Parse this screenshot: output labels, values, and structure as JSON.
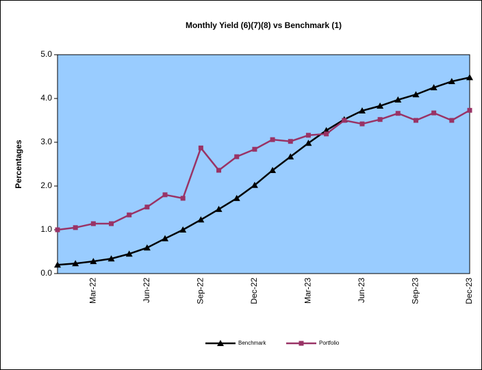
{
  "chart_data": {
    "type": "line",
    "title": "Monthly Yield (6)(7)(8) vs Benchmark (1)",
    "y_label": "Percentages",
    "categories": [
      null,
      null,
      "Mar-22",
      null,
      null,
      "Jun-22",
      null,
      null,
      "Sep-22",
      null,
      null,
      "Dec-22",
      null,
      null,
      "Mar-23",
      null,
      null,
      "Jun-23",
      null,
      null,
      "Sep-23",
      null,
      null,
      "Dec-23"
    ],
    "series": [
      {
        "name": "Benchmark",
        "color": "#000000",
        "marker": "triangle",
        "values": [
          0.2,
          0.23,
          0.28,
          0.34,
          0.45,
          0.59,
          0.8,
          1.0,
          1.23,
          1.47,
          1.72,
          2.02,
          2.36,
          2.67,
          2.98,
          3.27,
          3.52,
          3.72,
          3.83,
          3.97,
          4.09,
          4.25,
          4.39,
          4.48
        ]
      },
      {
        "name": "Portfolio",
        "color": "#993366",
        "marker": "square",
        "values": [
          1.0,
          1.05,
          1.14,
          1.14,
          1.34,
          1.52,
          1.8,
          1.72,
          2.87,
          2.36,
          2.67,
          2.84,
          3.06,
          3.02,
          3.16,
          3.19,
          3.5,
          3.42,
          3.52,
          3.66,
          3.5,
          3.67,
          3.5,
          3.73
        ]
      }
    ],
    "ylim": [
      0,
      5
    ],
    "yticks": [
      {
        "value": 0,
        "label": "0.0"
      },
      {
        "value": 1,
        "label": "1.0"
      },
      {
        "value": 2,
        "label": "2.0"
      },
      {
        "value": 3,
        "label": "3.0"
      },
      {
        "value": 4,
        "label": "4.0"
      },
      {
        "value": 5,
        "label": "5.0"
      }
    ],
    "plot_background": "#99ccff",
    "legend": "bottom"
  }
}
